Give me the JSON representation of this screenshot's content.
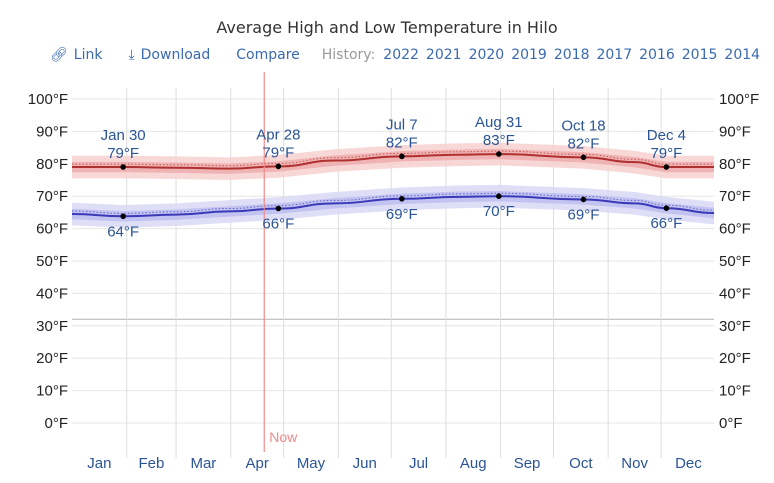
{
  "header": {
    "title": "Average High and Low Temperature in Hilo",
    "link_label": "Link",
    "download_label": "Download",
    "compare_label": "Compare",
    "history_label": "History:",
    "history_years": [
      "2022",
      "2021",
      "2020",
      "2019",
      "2018",
      "2017",
      "2016",
      "2015",
      "2014"
    ]
  },
  "icons": {
    "link": "link-icon",
    "download": "download-icon"
  },
  "colors": {
    "high": "#b03030",
    "low": "#3a3ab8",
    "text_blue": "#2a5496",
    "now": "#f08a8a",
    "high_band": "#f2b3b3",
    "low_band": "#c3c3f0"
  },
  "chart_data": {
    "type": "line",
    "title": "Average High and Low Temperature in Hilo",
    "xlabel": "",
    "ylabel": "",
    "ylim": [
      -10,
      105
    ],
    "y_ticks": [
      0,
      10,
      20,
      30,
      40,
      50,
      60,
      70,
      80,
      90,
      100
    ],
    "y_tick_labels": [
      "0°F",
      "10°F",
      "20°F",
      "30°F",
      "40°F",
      "50°F",
      "60°F",
      "70°F",
      "80°F",
      "90°F",
      "100°F"
    ],
    "freezing_line": 32,
    "months": [
      "Jan",
      "Feb",
      "Mar",
      "Apr",
      "May",
      "Jun",
      "Jul",
      "Aug",
      "Sep",
      "Oct",
      "Nov",
      "Dec"
    ],
    "grid": true,
    "now": {
      "label": "Now",
      "day_of_year": 110
    },
    "series": [
      {
        "name": "Average High",
        "color": "#b03030",
        "x_day": [
          1,
          30,
          60,
          90,
          118,
          150,
          188,
          220,
          243,
          291,
          320,
          338,
          365
        ],
        "values": [
          79,
          79,
          78.8,
          78.5,
          79.2,
          81,
          82.3,
          82.8,
          83,
          82,
          80.5,
          79,
          79
        ]
      },
      {
        "name": "Average Low",
        "color": "#3a3ab8",
        "x_day": [
          1,
          30,
          60,
          90,
          118,
          150,
          188,
          220,
          243,
          291,
          320,
          338,
          365
        ],
        "values": [
          64.5,
          63.8,
          64.3,
          65.3,
          66.2,
          67.8,
          69.2,
          69.8,
          70,
          69,
          67.8,
          66.3,
          64.8
        ]
      }
    ],
    "annotations": [
      {
        "label": "Jan 30",
        "value_label": "79°F",
        "day": 30,
        "value": 79,
        "series": "high"
      },
      {
        "label": "Apr 28",
        "value_label": "79°F",
        "day": 118,
        "value": 79.2,
        "series": "high"
      },
      {
        "label": "Jul 7",
        "value_label": "82°F",
        "day": 188,
        "value": 82.3,
        "series": "high"
      },
      {
        "label": "Aug 31",
        "value_label": "83°F",
        "day": 243,
        "value": 83,
        "series": "high"
      },
      {
        "label": "Oct 18",
        "value_label": "82°F",
        "day": 291,
        "value": 82,
        "series": "high"
      },
      {
        "label": "Dec 4",
        "value_label": "79°F",
        "day": 338,
        "value": 79,
        "series": "high"
      },
      {
        "label": "",
        "value_label": "64°F",
        "day": 30,
        "value": 63.8,
        "series": "low"
      },
      {
        "label": "",
        "value_label": "66°F",
        "day": 118,
        "value": 66.2,
        "series": "low"
      },
      {
        "label": "",
        "value_label": "69°F",
        "day": 188,
        "value": 69.2,
        "series": "low"
      },
      {
        "label": "",
        "value_label": "70°F",
        "day": 243,
        "value": 70,
        "series": "low"
      },
      {
        "label": "",
        "value_label": "69°F",
        "day": 291,
        "value": 69,
        "series": "low"
      },
      {
        "label": "",
        "value_label": "66°F",
        "day": 338,
        "value": 66.3,
        "series": "low"
      }
    ]
  }
}
